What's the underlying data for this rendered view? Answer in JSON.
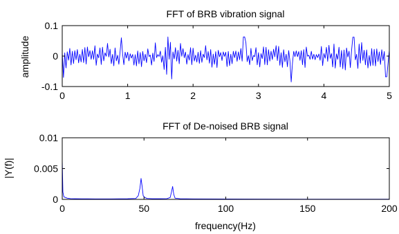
{
  "chart_data": [
    {
      "type": "line",
      "title": "FFT of BRB vibration signal",
      "xlabel": "",
      "ylabel": "amplitude",
      "xlim": [
        0,
        5
      ],
      "ylim": [
        -0.1,
        0.1
      ],
      "xticks": [
        0,
        1,
        2,
        3,
        4,
        5
      ],
      "xtick_labels": [
        "0",
        "1",
        "2",
        "3",
        "4",
        "5"
      ],
      "yticks": [
        -0.1,
        0,
        0.1
      ],
      "ytick_labels": [
        "-0.1",
        "0",
        "0.1"
      ],
      "grid": false,
      "line_color": "#0000ff",
      "series": [
        {
          "x_range": [
            0,
            5
          ],
          "point_count": 260,
          "envelope": [
            {
              "x": 0.0,
              "amp": 0.045
            },
            {
              "x": 0.25,
              "amp": 0.04
            },
            {
              "x": 0.5,
              "amp": 0.045
            },
            {
              "x": 0.75,
              "amp": 0.05
            },
            {
              "x": 1.0,
              "amp": 0.035
            },
            {
              "x": 1.25,
              "amp": 0.04
            },
            {
              "x": 1.5,
              "amp": 0.055
            },
            {
              "x": 1.75,
              "amp": 0.05
            },
            {
              "x": 2.0,
              "amp": 0.035
            },
            {
              "x": 2.25,
              "amp": 0.04
            },
            {
              "x": 2.5,
              "amp": 0.045
            },
            {
              "x": 2.75,
              "amp": 0.055
            },
            {
              "x": 3.0,
              "amp": 0.04
            },
            {
              "x": 3.25,
              "amp": 0.045
            },
            {
              "x": 3.5,
              "amp": 0.04
            },
            {
              "x": 3.75,
              "amp": 0.045
            },
            {
              "x": 4.0,
              "amp": 0.04
            },
            {
              "x": 4.25,
              "amp": 0.05
            },
            {
              "x": 4.5,
              "amp": 0.055
            },
            {
              "x": 4.75,
              "amp": 0.045
            },
            {
              "x": 5.0,
              "amp": 0.04
            }
          ],
          "peaks": [
            {
              "x": 1.62,
              "y": 0.063
            },
            {
              "x": 1.6,
              "y": -0.06
            },
            {
              "x": 2.78,
              "y": 0.063
            },
            {
              "x": 3.5,
              "y": -0.085
            },
            {
              "x": 4.45,
              "y": 0.062
            },
            {
              "x": 4.95,
              "y": -0.068
            },
            {
              "x": 0.9,
              "y": 0.06
            },
            {
              "x": 1.68,
              "y": -0.075
            },
            {
              "x": 0.02,
              "y": -0.07
            }
          ]
        }
      ]
    },
    {
      "type": "line",
      "title": "FFT of De-noised BRB signal",
      "xlabel": "frequency(Hz)",
      "ylabel": "|Y(f)|",
      "xlim": [
        0,
        200
      ],
      "ylim": [
        0,
        0.01
      ],
      "xticks": [
        0,
        50,
        100,
        150,
        200
      ],
      "xtick_labels": [
        "0",
        "50",
        "100",
        "150",
        "200"
      ],
      "yticks": [
        0,
        0.005,
        0.01
      ],
      "ytick_labels": [
        "0",
        "0.005",
        "0.01"
      ],
      "grid": false,
      "line_color": "#0000ff",
      "series": [
        {
          "x": [
            0,
            0.4,
            1,
            2,
            3,
            5,
            8,
            12,
            20,
            30,
            40,
            45,
            46.5,
            47.5,
            48.2,
            48.8,
            49.5,
            50.5,
            52,
            55,
            60,
            64,
            66,
            66.8,
            67.5,
            68.2,
            69,
            72,
            80,
            100,
            120,
            150,
            180,
            200
          ],
          "values": [
            0.0065,
            0.0012,
            0.0004,
            0.0003,
            0.0002,
            0.00012,
            0.0001,
            9e-05,
            8e-05,
            8e-05,
            0.0001,
            0.00015,
            0.0006,
            0.0018,
            0.0034,
            0.0022,
            0.0006,
            0.0003,
            0.00015,
            0.0001,
            0.0001,
            0.00012,
            0.0003,
            0.0012,
            0.0021,
            0.0008,
            0.0002,
            0.0001,
            8e-05,
            6e-05,
            5e-05,
            4e-05,
            4e-05,
            4e-05
          ]
        }
      ]
    }
  ]
}
